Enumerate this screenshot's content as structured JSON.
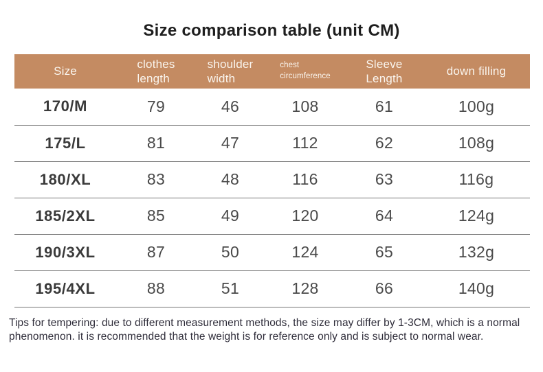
{
  "title": "Size comparison table (unit CM)",
  "table": {
    "columns": [
      {
        "name": "size",
        "lines": [
          "Size"
        ]
      },
      {
        "name": "clothes-length",
        "lines": [
          "clothes",
          "length"
        ]
      },
      {
        "name": "shoulder-width",
        "lines": [
          "shoulder",
          "width"
        ]
      },
      {
        "name": "chest-circumference",
        "lines": [
          "chest",
          "circumference"
        ]
      },
      {
        "name": "sleeve-length",
        "lines": [
          "Sleeve",
          "Length"
        ]
      },
      {
        "name": "down-filling",
        "lines": [
          "down filling"
        ]
      }
    ],
    "rows": [
      {
        "size": "170/M",
        "values": [
          "79",
          "46",
          "108",
          "61",
          "100g"
        ]
      },
      {
        "size": "175/L",
        "values": [
          "81",
          "47",
          "112",
          "62",
          "108g"
        ]
      },
      {
        "size": "180/XL",
        "values": [
          "83",
          "48",
          "116",
          "63",
          "116g"
        ]
      },
      {
        "size": "185/2XL",
        "values": [
          "85",
          "49",
          "120",
          "64",
          "124g"
        ]
      },
      {
        "size": "190/3XL",
        "values": [
          "87",
          "50",
          "124",
          "65",
          "132g"
        ]
      },
      {
        "size": "195/4XL",
        "values": [
          "88",
          "51",
          "128",
          "66",
          "140g"
        ]
      }
    ]
  },
  "footer": {
    "note": "Tips for tempering: due to different measurement methods, the size may differ by 1-3CM, which is a normal phenomenon. it is recommended that the weight is for reference only and is subject to normal wear."
  },
  "colors": {
    "header_bg": "#c48b62",
    "header_text": "#faf5ee",
    "row_divider": "#737373",
    "title_text": "#1e1e1e",
    "value_text": "#4a4a4a",
    "size_text": "#3a3a3a",
    "note_text": "#2f2d3a"
  }
}
